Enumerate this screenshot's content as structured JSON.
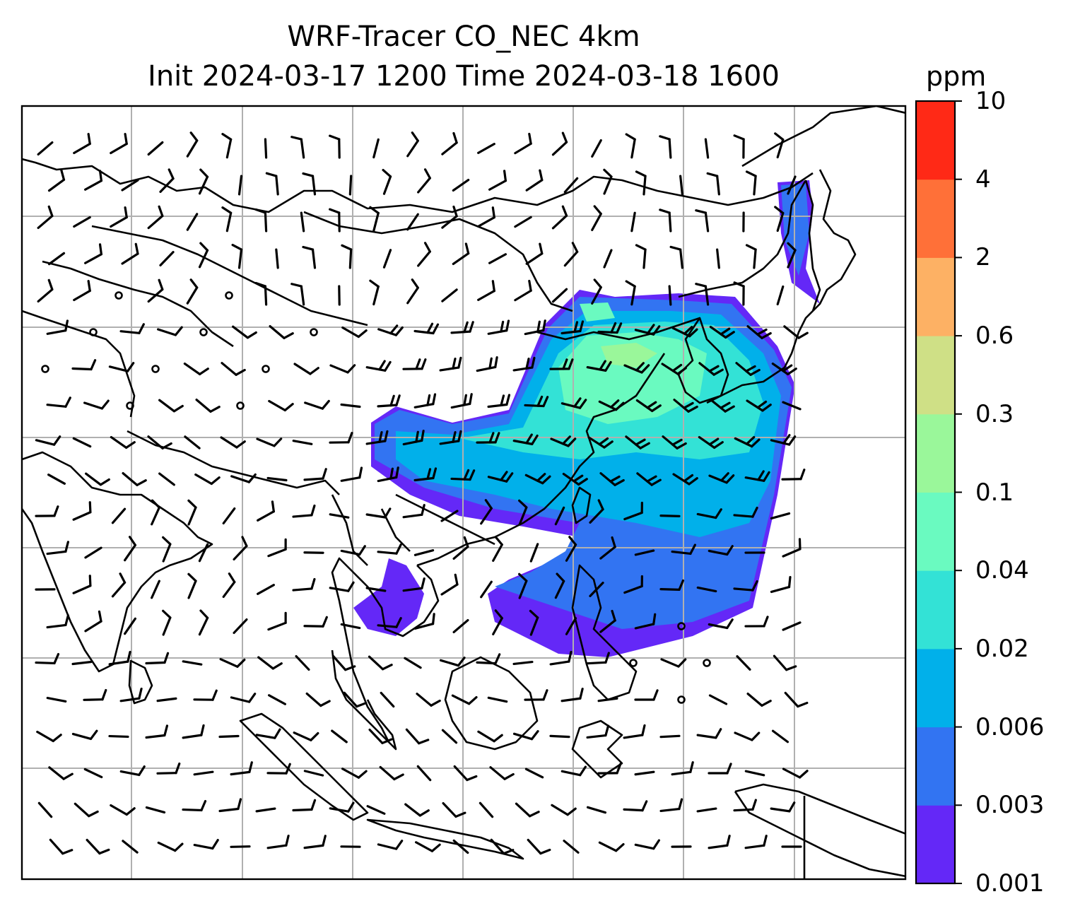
{
  "title": {
    "line1": "WRF-Tracer CO_NEC 4km",
    "line2": "Init 2024-03-17 1200 Time 2024-03-18 1600"
  },
  "colorbar": {
    "unit": "ppm",
    "levels": [
      "0.001",
      "0.003",
      "0.006",
      "0.02",
      "0.04",
      "0.1",
      "0.3",
      "0.6",
      "2",
      "4",
      "10"
    ],
    "colors": [
      "#6428f7",
      "#3274f2",
      "#01b0ea",
      "#33e2d6",
      "#6afac0",
      "#9af79a",
      "#cfe086",
      "#fdb164",
      "#ff7038",
      "#ff2916"
    ]
  },
  "map": {
    "gridlines": true,
    "coastlines": true,
    "wind_barbs": true
  }
}
